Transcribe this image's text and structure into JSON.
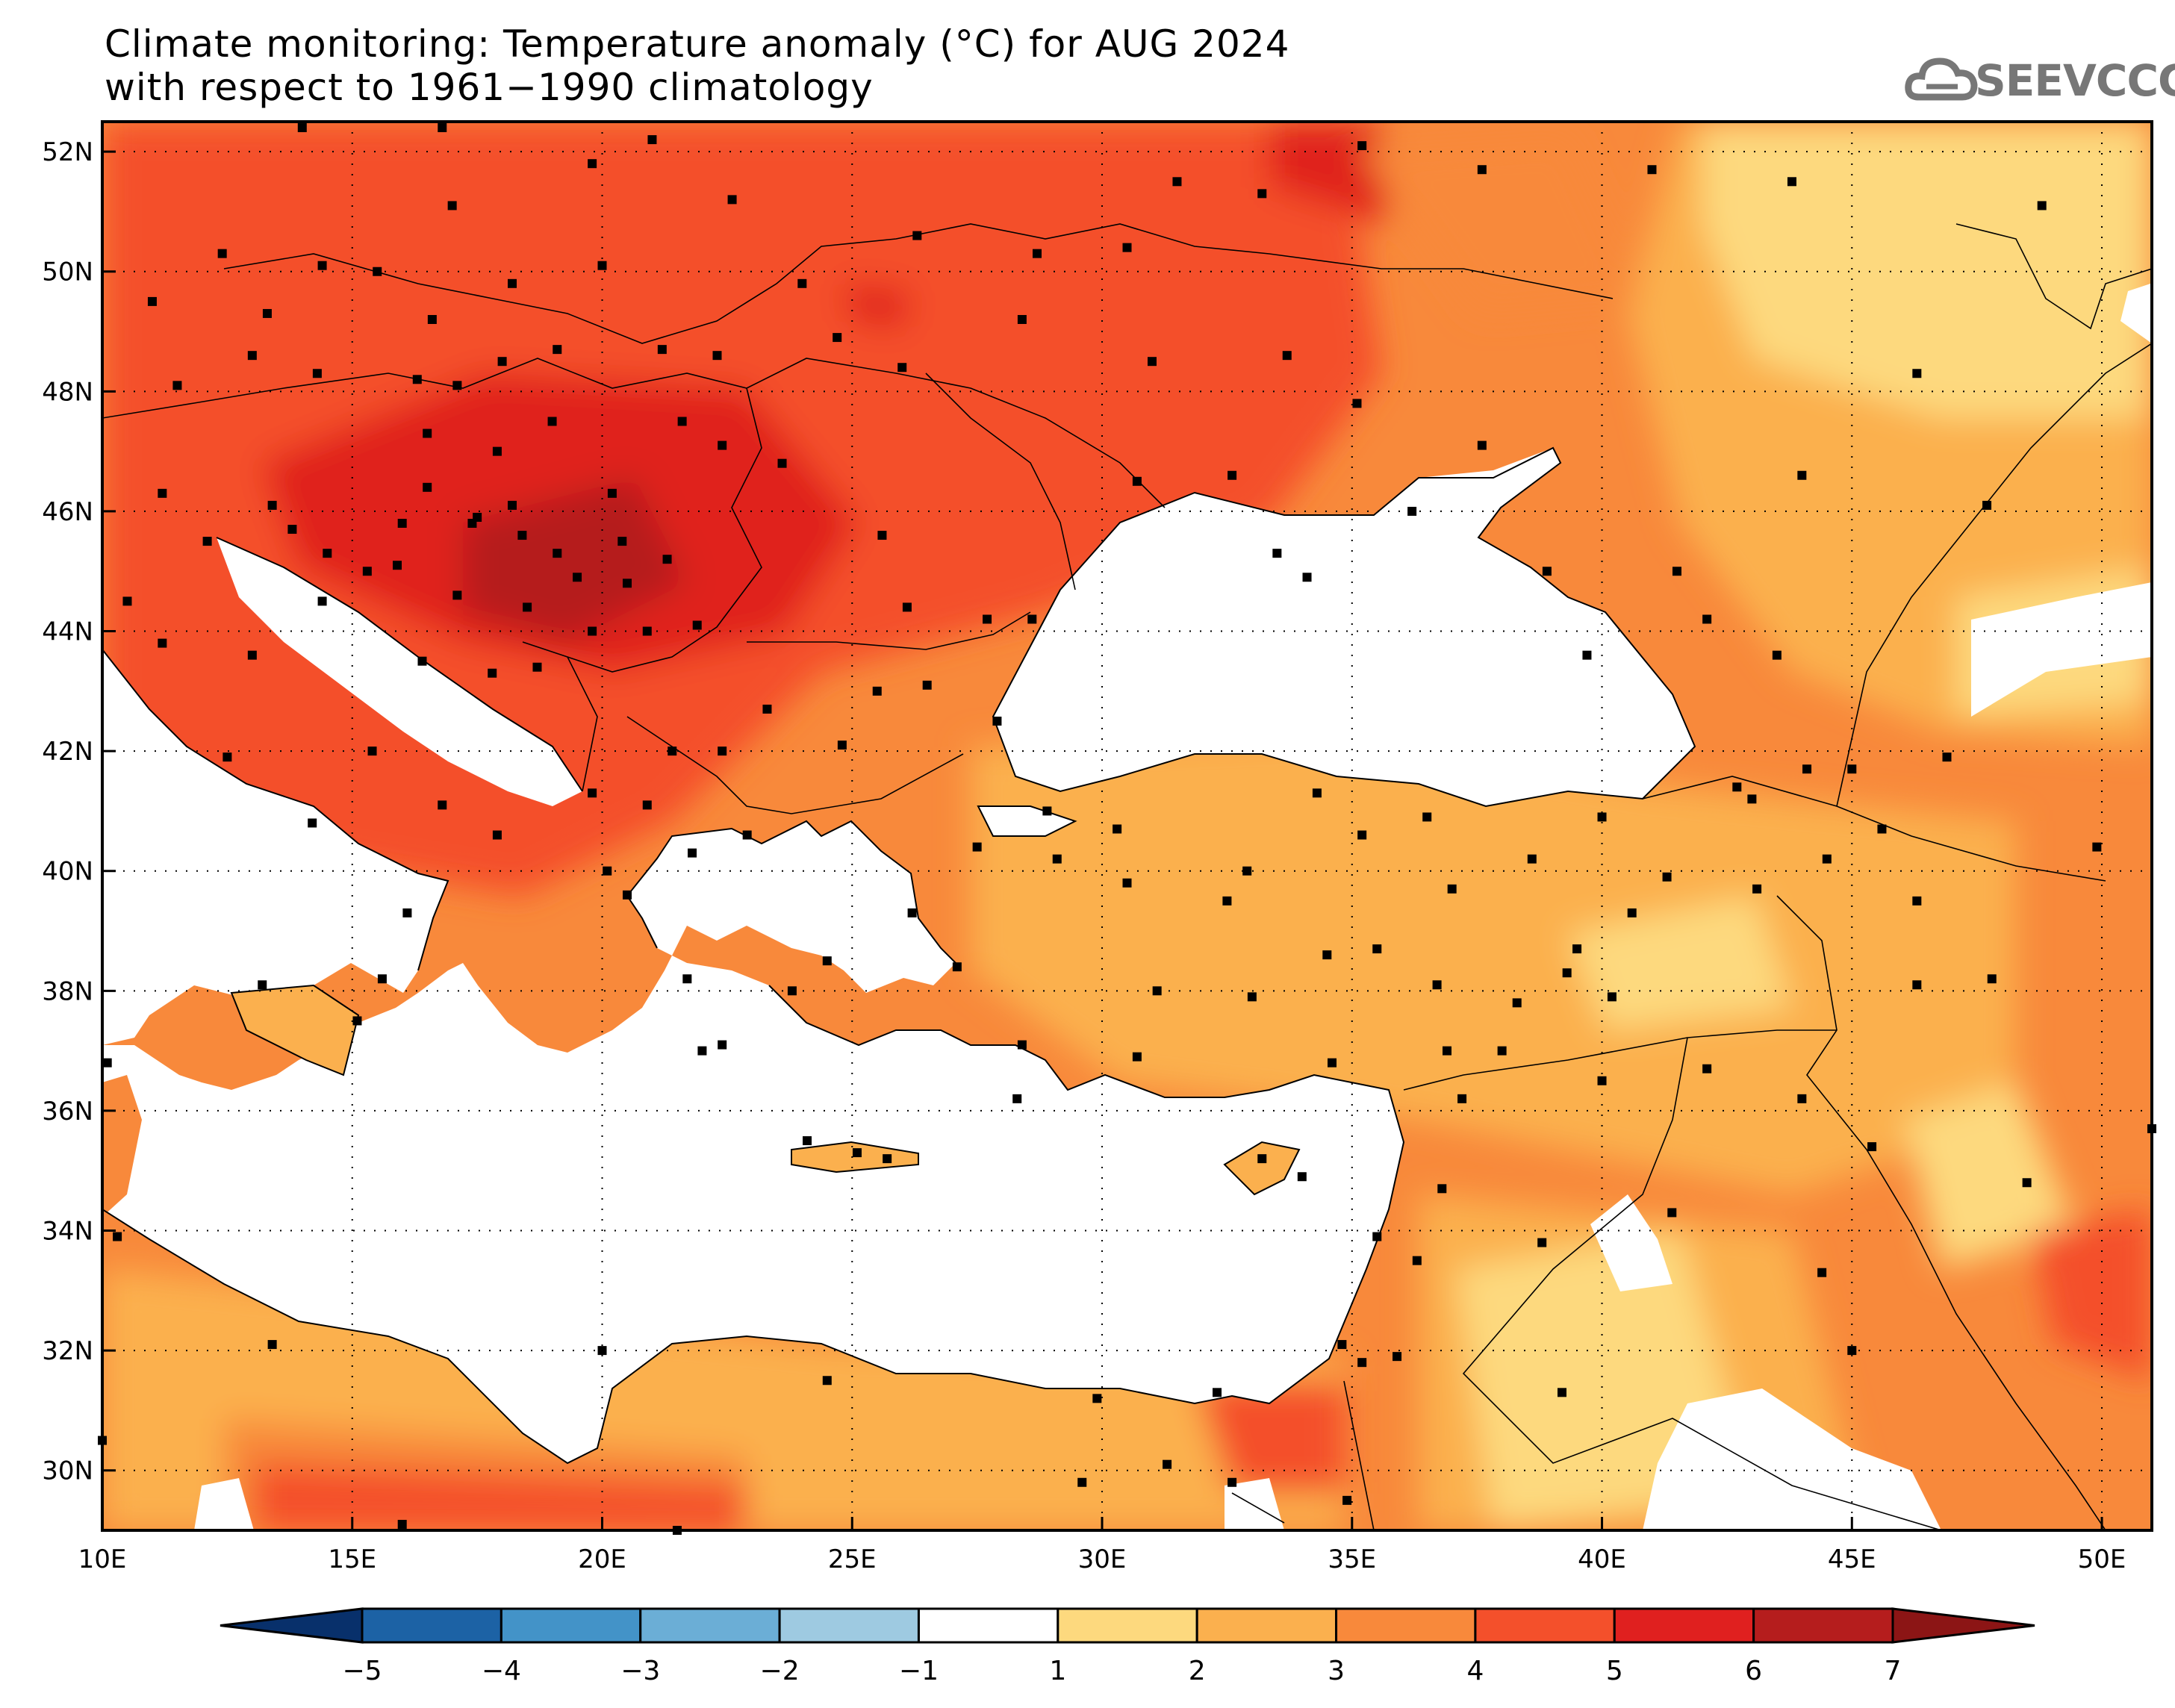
{
  "title": {
    "line1": "Climate monitoring: Temperature anomaly (°C) for AUG 2024",
    "line2": "with respect to 1961−1990 climatology"
  },
  "logo": {
    "text": "SEEVCCC",
    "icon": "cloud-icon"
  },
  "map": {
    "lon_range": [
      10,
      51
    ],
    "lat_range": [
      29,
      52.5
    ],
    "x_ticks": [
      {
        "value": 10,
        "label": "10E"
      },
      {
        "value": 15,
        "label": "15E"
      },
      {
        "value": 20,
        "label": "20E"
      },
      {
        "value": 25,
        "label": "25E"
      },
      {
        "value": 30,
        "label": "30E"
      },
      {
        "value": 35,
        "label": "35E"
      },
      {
        "value": 40,
        "label": "40E"
      },
      {
        "value": 45,
        "label": "45E"
      },
      {
        "value": 50,
        "label": "50E"
      }
    ],
    "y_ticks": [
      {
        "value": 30,
        "label": "30N"
      },
      {
        "value": 32,
        "label": "32N"
      },
      {
        "value": 34,
        "label": "34N"
      },
      {
        "value": 36,
        "label": "36N"
      },
      {
        "value": 38,
        "label": "38N"
      },
      {
        "value": 40,
        "label": "40N"
      },
      {
        "value": 42,
        "label": "42N"
      },
      {
        "value": 44,
        "label": "44N"
      },
      {
        "value": 46,
        "label": "46N"
      },
      {
        "value": 48,
        "label": "48N"
      },
      {
        "value": 50,
        "label": "50N"
      },
      {
        "value": 52,
        "label": "52N"
      }
    ],
    "grid": "dotted",
    "colorbar": {
      "labels": [
        "−5",
        "−4",
        "−3",
        "−2",
        "−1",
        "1",
        "2",
        "3",
        "4",
        "5",
        "6",
        "7"
      ],
      "colors": [
        "#08306b",
        "#1c62a5",
        "#4393c8",
        "#6baed6",
        "#9ecae1",
        "#ffffff",
        "#fdd97e",
        "#fbb04e",
        "#f8893b",
        "#f4502b",
        "#e0201f",
        "#b51d1d",
        "#8c1515"
      ]
    },
    "stations": [
      [
        10.5,
        44.5
      ],
      [
        11.2,
        46.3
      ],
      [
        12.1,
        45.5
      ],
      [
        13.4,
        46.1
      ],
      [
        14.5,
        45.3
      ],
      [
        16.0,
        45.8
      ],
      [
        16.5,
        46.4
      ],
      [
        17.5,
        45.9
      ],
      [
        18.4,
        45.6
      ],
      [
        19.1,
        45.3
      ],
      [
        19.5,
        44.9
      ],
      [
        20.4,
        45.5
      ],
      [
        20.5,
        44.8
      ],
      [
        21.3,
        45.2
      ],
      [
        21.9,
        44.1
      ],
      [
        20.9,
        44.0
      ],
      [
        19.8,
        44.0
      ],
      [
        18.7,
        43.4
      ],
      [
        17.8,
        43.3
      ],
      [
        16.4,
        43.5
      ],
      [
        17.1,
        44.6
      ],
      [
        15.3,
        45.0
      ],
      [
        14.4,
        44.5
      ],
      [
        13.8,
        45.7
      ],
      [
        11.5,
        48.1
      ],
      [
        13.0,
        48.6
      ],
      [
        14.3,
        48.3
      ],
      [
        16.3,
        48.2
      ],
      [
        17.1,
        48.1
      ],
      [
        18.0,
        48.5
      ],
      [
        19.1,
        48.7
      ],
      [
        21.2,
        48.7
      ],
      [
        22.3,
        48.6
      ],
      [
        21.6,
        47.5
      ],
      [
        19.0,
        47.5
      ],
      [
        20.2,
        46.3
      ],
      [
        18.2,
        46.1
      ],
      [
        17.9,
        47.0
      ],
      [
        16.5,
        47.3
      ],
      [
        22.4,
        47.1
      ],
      [
        23.6,
        46.8
      ],
      [
        25.6,
        45.6
      ],
      [
        26.1,
        44.4
      ],
      [
        27.7,
        44.2
      ],
      [
        28.6,
        44.2
      ],
      [
        26.5,
        43.1
      ],
      [
        25.5,
        43.0
      ],
      [
        23.3,
        42.7
      ],
      [
        24.8,
        42.1
      ],
      [
        27.9,
        42.5
      ],
      [
        22.4,
        42.0
      ],
      [
        21.4,
        42.0
      ],
      [
        20.9,
        41.1
      ],
      [
        19.8,
        41.3
      ],
      [
        20.1,
        40.0
      ],
      [
        21.8,
        40.3
      ],
      [
        22.9,
        40.6
      ],
      [
        23.8,
        38.0
      ],
      [
        22.4,
        37.1
      ],
      [
        21.7,
        38.2
      ],
      [
        25.1,
        35.3
      ],
      [
        24.1,
        35.5
      ],
      [
        28.9,
        41.0
      ],
      [
        27.5,
        40.4
      ],
      [
        29.1,
        40.2
      ],
      [
        30.5,
        39.8
      ],
      [
        32.9,
        40.0
      ],
      [
        35.5,
        38.7
      ],
      [
        36.9,
        37.0
      ],
      [
        34.6,
        36.8
      ],
      [
        30.7,
        36.9
      ],
      [
        33.0,
        37.9
      ],
      [
        38.3,
        37.8
      ],
      [
        40.2,
        37.9
      ],
      [
        41.3,
        39.9
      ],
      [
        39.5,
        38.7
      ],
      [
        43.1,
        39.7
      ],
      [
        44.5,
        40.2
      ],
      [
        45.0,
        41.7
      ],
      [
        46.9,
        41.9
      ],
      [
        49.9,
        40.4
      ],
      [
        47.8,
        38.2
      ],
      [
        46.3,
        38.1
      ],
      [
        44.0,
        36.2
      ],
      [
        45.4,
        35.4
      ],
      [
        48.5,
        34.8
      ],
      [
        44.4,
        33.3
      ],
      [
        51.0,
        35.7
      ],
      [
        35.9,
        31.9
      ],
      [
        35.2,
        31.8
      ],
      [
        36.3,
        33.5
      ],
      [
        34.8,
        32.1
      ],
      [
        31.3,
        30.1
      ],
      [
        32.3,
        31.3
      ],
      [
        29.9,
        31.2
      ],
      [
        32.6,
        29.8
      ],
      [
        33.2,
        35.2
      ],
      [
        34.0,
        34.9
      ],
      [
        35.5,
        33.9
      ],
      [
        38.8,
        33.8
      ],
      [
        36.8,
        34.7
      ],
      [
        37.2,
        36.2
      ],
      [
        40.0,
        36.5
      ],
      [
        41.4,
        34.3
      ],
      [
        42.1,
        36.7
      ],
      [
        44.1,
        41.7
      ],
      [
        43.5,
        43.6
      ],
      [
        42.1,
        44.2
      ],
      [
        39.7,
        43.6
      ],
      [
        38.9,
        45.0
      ],
      [
        37.6,
        47.1
      ],
      [
        36.2,
        46.0
      ],
      [
        34.1,
        44.9
      ],
      [
        33.5,
        45.3
      ],
      [
        30.7,
        46.5
      ],
      [
        32.6,
        46.6
      ],
      [
        35.1,
        47.8
      ],
      [
        33.7,
        48.6
      ],
      [
        31.0,
        48.5
      ],
      [
        30.5,
        50.4
      ],
      [
        28.4,
        49.2
      ],
      [
        26.0,
        48.4
      ],
      [
        24.7,
        48.9
      ],
      [
        24.0,
        49.8
      ],
      [
        26.3,
        50.6
      ],
      [
        28.7,
        50.3
      ],
      [
        31.5,
        51.5
      ],
      [
        33.2,
        51.3
      ],
      [
        35.2,
        52.1
      ],
      [
        37.6,
        51.7
      ],
      [
        41.0,
        51.7
      ],
      [
        43.8,
        51.5
      ],
      [
        48.8,
        51.1
      ],
      [
        46.3,
        48.3
      ],
      [
        47.7,
        46.1
      ],
      [
        44.0,
        46.6
      ],
      [
        41.5,
        45.0
      ],
      [
        19.8,
        51.8
      ],
      [
        21.0,
        52.2
      ],
      [
        22.6,
        51.2
      ],
      [
        17.0,
        51.1
      ],
      [
        15.5,
        50.0
      ],
      [
        14.4,
        50.1
      ],
      [
        12.4,
        50.3
      ],
      [
        11.0,
        49.5
      ],
      [
        13.3,
        49.3
      ],
      [
        16.6,
        49.2
      ],
      [
        18.2,
        49.8
      ],
      [
        20.0,
        50.1
      ],
      [
        14.0,
        52.4
      ],
      [
        16.8,
        52.4
      ],
      [
        15.4,
        42.0
      ],
      [
        16.8,
        41.1
      ],
      [
        14.2,
        40.8
      ],
      [
        13.0,
        43.6
      ],
      [
        11.2,
        43.8
      ],
      [
        12.5,
        41.9
      ],
      [
        13.2,
        38.1
      ],
      [
        15.1,
        37.5
      ],
      [
        10.1,
        36.8
      ],
      [
        10.3,
        33.9
      ],
      [
        15.6,
        38.2
      ],
      [
        16.1,
        39.3
      ],
      [
        17.9,
        40.6
      ],
      [
        20.5,
        39.6
      ],
      [
        18.5,
        44.4
      ],
      [
        15.9,
        45.1
      ],
      [
        17.4,
        45.8
      ],
      [
        22.0,
        37.0
      ],
      [
        24.5,
        38.5
      ],
      [
        26.2,
        39.3
      ],
      [
        27.1,
        38.4
      ],
      [
        28.4,
        37.1
      ],
      [
        31.1,
        38.0
      ],
      [
        35.2,
        40.6
      ],
      [
        37.0,
        39.7
      ],
      [
        38.6,
        40.2
      ],
      [
        40.0,
        40.9
      ],
      [
        42.7,
        41.4
      ],
      [
        36.5,
        40.9
      ],
      [
        34.3,
        41.3
      ],
      [
        30.3,
        40.7
      ],
      [
        32.5,
        39.5
      ],
      [
        34.5,
        38.6
      ],
      [
        36.7,
        38.1
      ],
      [
        38.0,
        37.0
      ],
      [
        39.3,
        38.3
      ],
      [
        40.6,
        39.3
      ],
      [
        43.0,
        41.2
      ],
      [
        45.6,
        40.7
      ],
      [
        46.3,
        39.5
      ],
      [
        25.7,
        35.2
      ],
      [
        28.3,
        36.2
      ],
      [
        29.6,
        29.8
      ],
      [
        16.0,
        29.1
      ],
      [
        21.5,
        29.0
      ],
      [
        24.5,
        31.5
      ],
      [
        20.0,
        32.0
      ],
      [
        13.4,
        32.1
      ],
      [
        10.0,
        30.5
      ],
      [
        34.9,
        29.5
      ],
      [
        39.2,
        31.3
      ],
      [
        45.0,
        32.0
      ]
    ]
  }
}
